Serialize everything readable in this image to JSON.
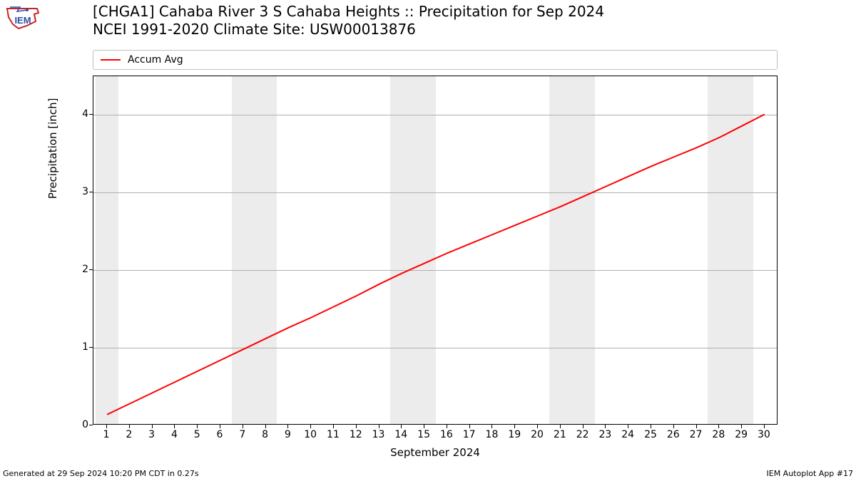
{
  "logo": {
    "text": "IEM",
    "stroke": "#cc2222",
    "text_color": "#2a4fa2"
  },
  "title": {
    "line1": "[CHGA1] Cahaba River 3 S Cahaba Heights :: Precipitation for Sep 2024",
    "line2": "NCEI 1991-2020 Climate Site: USW00013876",
    "fontsize": 20
  },
  "chart": {
    "type": "line",
    "legend": {
      "label": "Accum Avg",
      "color": "#ff0000"
    },
    "background_color": "#ffffff",
    "grid_color": "#b0b0b0",
    "weekend_band_color": "#ececec",
    "line_color": "#ff0000",
    "line_width": 2,
    "ylabel": "Precipitation [inch]",
    "xlabel": "September 2024",
    "ylim": [
      0,
      4.5
    ],
    "yticks": [
      0,
      1,
      2,
      3,
      4
    ],
    "xlim": [
      0.4,
      30.6
    ],
    "xticks": [
      1,
      2,
      3,
      4,
      5,
      6,
      7,
      8,
      9,
      10,
      11,
      12,
      13,
      14,
      15,
      16,
      17,
      18,
      19,
      20,
      21,
      22,
      23,
      24,
      25,
      26,
      27,
      28,
      29,
      30
    ],
    "weekend_bands": [
      [
        0.5,
        1.5
      ],
      [
        6.5,
        8.5
      ],
      [
        13.5,
        15.5
      ],
      [
        20.5,
        22.5
      ],
      [
        27.5,
        29.5
      ]
    ],
    "series": {
      "x": [
        1,
        2,
        3,
        4,
        5,
        6,
        7,
        8,
        9,
        10,
        11,
        12,
        13,
        14,
        15,
        16,
        17,
        18,
        19,
        20,
        21,
        22,
        23,
        24,
        25,
        26,
        27,
        28,
        29,
        30
      ],
      "y": [
        0.14,
        0.28,
        0.42,
        0.56,
        0.7,
        0.84,
        0.98,
        1.12,
        1.26,
        1.39,
        1.53,
        1.67,
        1.82,
        1.96,
        2.09,
        2.22,
        2.34,
        2.46,
        2.58,
        2.7,
        2.82,
        2.95,
        3.08,
        3.21,
        3.34,
        3.46,
        3.58,
        3.71,
        3.86,
        4.01
      ]
    },
    "label_fontsize": 15,
    "tick_fontsize": 14
  },
  "footer": {
    "left": "Generated at 29 Sep 2024 10:20 PM CDT in 0.27s",
    "right": "IEM Autoplot App #17",
    "fontsize": 11
  }
}
